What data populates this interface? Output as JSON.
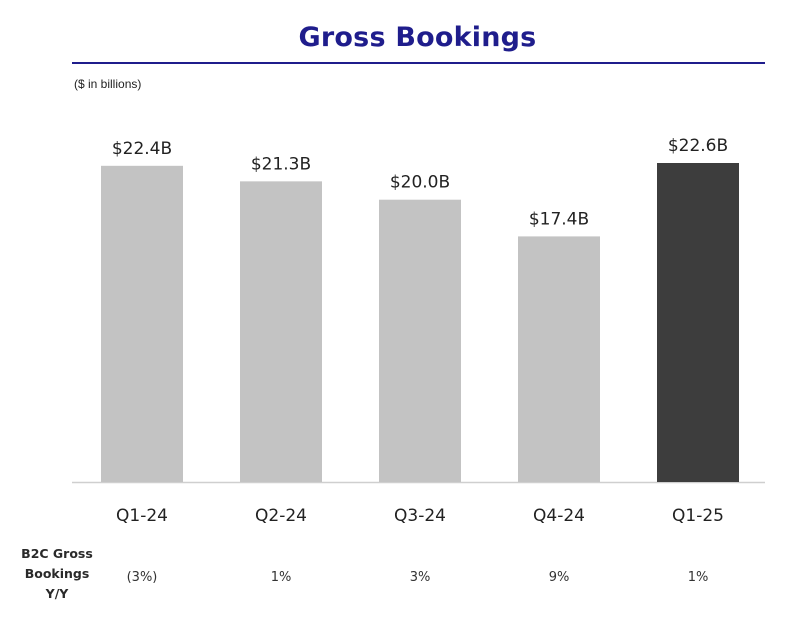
{
  "chart_data": {
    "type": "bar",
    "title": "Gross Bookings",
    "unit_note": "($ in billions)",
    "categories": [
      "Q1-24",
      "Q2-24",
      "Q3-24",
      "Q4-24",
      "Q1-25"
    ],
    "values": [
      22.4,
      21.3,
      20.0,
      17.4,
      22.6
    ],
    "data_labels": [
      "$22.4B",
      "$21.3B",
      "$20.0B",
      "$17.4B",
      "$22.6B"
    ],
    "ylim": [
      0,
      22.6
    ],
    "grid": false,
    "colors": {
      "bar": "#c3c3c3",
      "highlight_bar": "#3d3d3d",
      "title": "#1f1d8c",
      "axis": "#cfcfcf"
    },
    "highlight_index": 4,
    "row": {
      "label": [
        "B2C Gross",
        "Bookings",
        "Y/Y"
      ],
      "values": [
        "(3%)",
        "1%",
        "3%",
        "9%",
        "1%"
      ]
    }
  }
}
